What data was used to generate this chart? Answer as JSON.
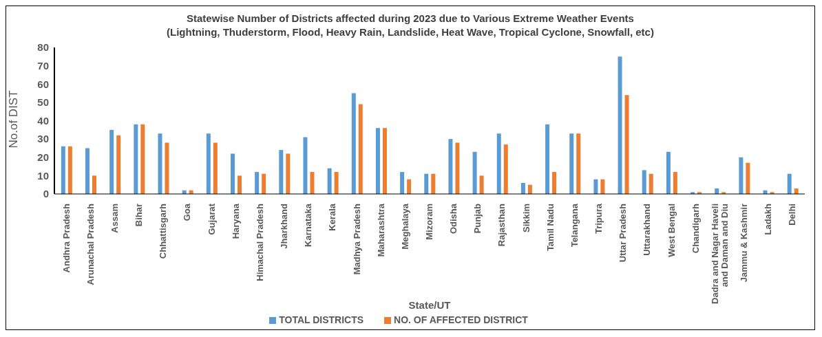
{
  "chart_data": {
    "type": "bar",
    "title": "Statewise Number of Districts affected during 2023 due to Various Extreme Weather Events",
    "subtitle": "(Lightning,  Thuderstorm, Flood, Heavy Rain, Landslide, Heat Wave, Tropical Cyclone, Snowfall, etc)",
    "xlabel": "State/UT",
    "ylabel": "No.of  DIST",
    "categories": [
      "Andhra Pradesh",
      "Arunachal Pradesh",
      "Assam",
      "Bihar",
      "Chhattisgarh",
      "Goa",
      "Gujarat",
      "Haryana",
      "Himachal Pradesh",
      "Jharkhand",
      "Karnataka",
      "Kerala",
      "Madhya Pradesh",
      "Maharashtra",
      "Meghalaya",
      "Mizoram",
      "Odisha",
      "Punjab",
      "Rajasthan",
      "Sikkim",
      "Tamil Nadu",
      "Telangana",
      "Tripura",
      "Uttar Pradesh",
      "Uttarakhand",
      "West Bengal",
      "Chandigarh",
      "Dadra and Nagar Haveli and Daman and Diu",
      "Jammu & Kashmir",
      "Ladakh",
      "Delhi"
    ],
    "series": [
      {
        "name": "TOTAL DISTRICTS",
        "color": "#5b9bd5",
        "values": [
          26,
          25,
          35,
          38,
          33,
          2,
          33,
          22,
          12,
          24,
          31,
          14,
          55,
          36,
          12,
          11,
          30,
          23,
          33,
          6,
          38,
          33,
          8,
          75,
          13,
          23,
          1,
          3,
          20,
          2,
          11
        ]
      },
      {
        "name": "NO. OF AFFECTED DISTRICT",
        "color": "#ed7d31",
        "values": [
          26,
          10,
          32,
          38,
          28,
          2,
          28,
          10,
          11,
          22,
          12,
          12,
          49,
          36,
          8,
          11,
          28,
          10,
          27,
          5,
          12,
          33,
          8,
          54,
          11,
          12,
          1,
          1,
          17,
          1,
          3
        ]
      }
    ],
    "ylim": [
      0,
      80
    ],
    "yticks": [
      0,
      10,
      20,
      30,
      40,
      50,
      60,
      70,
      80
    ],
    "grid": false,
    "legend": "bottom"
  }
}
